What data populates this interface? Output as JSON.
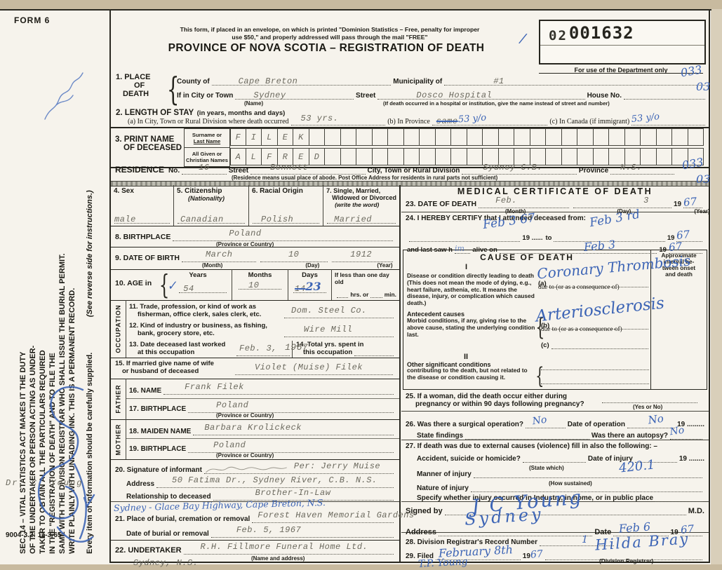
{
  "glyphs": {
    "brace": "{",
    "check": "✓",
    "slash": "/"
  },
  "meta": {
    "form_no": "FORM 6",
    "print_code": "9004-3.2: 11-3-65",
    "margin": {
      "l1": "SEC. 14 – VITAL STATISTICS ACT MAKES IT THE DUTY",
      "l2": "OF THE UNDERTAKER OR PERSON ACTING AS UNDER-",
      "l3": "TAKER TO OBTAIN ALL THE PARTICULARS REQUIRED",
      "l4": "IN THE \"REGISTRATION OF DEATH\" AND TO FILE THE",
      "l5": "SAME WITH THE DIVISION REGISTRAR WHO SHALL ISSUE THE BURIAL PERMIT.",
      "l6": "WRITE PLAINLY WITH UNFADING INK. THIS IS A PERMANENT RECORD.",
      "l7": "Every item of information should be carefully supplied.",
      "l8": "(See reverse side for instructions.)",
      "doctor_note": "Dr. C. Young"
    }
  },
  "header": {
    "envelope1": "This form, if placed in an envelope, on which is printed \"Dominion Statistics – Free, penalty for improper",
    "envelope2": "use $50,\" and properly addressed will pass through the mail \"FREE\"",
    "title": "PROVINCE OF NOVA SCOTIA – REGISTRATION OF DEATH",
    "stamp_prefix": "02",
    "stamp_number": "001632",
    "dept_label": "For use of the Department only",
    "code_top_1": "033",
    "code_top_2": "03",
    "code_res_1": "033",
    "code_res_2": "03"
  },
  "s1": {
    "title1": "1. PLACE",
    "title2": "OF",
    "title3": "DEATH",
    "county_label": "County of",
    "county": "Cape Breton",
    "municipality_label": "Municipality of",
    "municipality": "#1",
    "city_label": "If in City or Town",
    "city": "Sydney",
    "name_caption": "(Name)",
    "street_label": "Street",
    "street": "Dosco Hospital",
    "street_caption": "(If death occurred in a hospital or institution, give the name instead of street and number)",
    "house_label": "House No."
  },
  "s2": {
    "title": "2. LENGTH OF STAY",
    "subtitle": "(in years, months and days)",
    "a_label": "(a) In City, Town or Rural Division where death occurred",
    "a": "53 yrs.",
    "b_label": "(b) In Province",
    "b_struck": "same",
    "b_hw": "53 y/o",
    "c_label": "(c) In Canada (if immigrant)",
    "c_hw": "53 y/o"
  },
  "s3": {
    "title1": "3. PRINT NAME",
    "title2": "OF DECEASED",
    "surname_label1": "Surname or",
    "surname_label2": "Last Name",
    "given_label1": "All Given or",
    "given_label2": "Christian Names",
    "surname": "FILEK",
    "given": "ALFRED"
  },
  "residence": {
    "title": "RESIDENCE",
    "no_label": "No.",
    "no": "16",
    "street_label": "Street",
    "street": "Bennett",
    "city_label": "City, Town or Rural Division",
    "city": "Sydney C.B.",
    "province_label": "Province",
    "province": "N.S.",
    "caption": "(Residence means usual place of abode. Post Office Address for residents in rural parts not sufficient)"
  },
  "s4": {
    "label": "4. Sex",
    "value": "male"
  },
  "s5": {
    "label": "5. Citizenship",
    "sub": "(Nationality)",
    "value": "Canadian"
  },
  "s6": {
    "label": "6. Racial Origin",
    "value": "Polish"
  },
  "s7": {
    "label1": "7. Single, Married,",
    "label2": "Widowed or Divorced",
    "label3": "(write the word)",
    "value": "Married"
  },
  "s8": {
    "label": "8. BIRTHPLACE",
    "value": "Poland",
    "caption": "(Province or Country)"
  },
  "s9": {
    "label": "9. DATE OF BIRTH",
    "month": "March",
    "month_cap": "(Month)",
    "day": "10",
    "day_cap": "(Day)",
    "year": "1912",
    "year_cap": "(Year)"
  },
  "s10": {
    "label": "10. AGE in",
    "years_label": "Years",
    "years": "54",
    "months_label": "Months",
    "months": "10",
    "days_label": "Days",
    "days_struck": "14",
    "days_hw": "23",
    "less1": "If less than one day old",
    "less2": "hrs. or",
    "less3": "min."
  },
  "occupation_label": "OCCUPATION",
  "s11": {
    "label1": "11. Trade, profession, or kind of work as",
    "label2": "fisherman, office clerk, sales clerk, etc.",
    "value": "Dom. Steel Co."
  },
  "s12": {
    "label1": "12. Kind of industry or business, as fishing,",
    "label2": "bank, grocery store, etc.",
    "value": "Wire Mill"
  },
  "s13": {
    "label1": "13. Date deceased last worked",
    "label2": "at this occupation",
    "value": "Feb. 3,",
    "year": "1967"
  },
  "s14": {
    "label1": "14. Total yrs. spent in",
    "label2": "this occupation"
  },
  "s15": {
    "label1": "15. If married give name of wife",
    "label2": "or husband of deceased",
    "value": "Violet (Muise) Filek"
  },
  "father_label": "FATHER",
  "s16": {
    "label": "16. NAME",
    "value": "Frank Filek"
  },
  "s17": {
    "label": "17. BIRTHPLACE",
    "value": "Poland",
    "caption": "(Province or Country)"
  },
  "mother_label": "MOTHER",
  "s18": {
    "label": "18. MAIDEN NAME",
    "value": "Barbara Krolickeck"
  },
  "s19": {
    "label": "19. BIRTHPLACE",
    "value": "Poland",
    "caption": "(Province or Country)"
  },
  "s20": {
    "label": "20. Signature of informant",
    "per": "Per: Jerry Muise",
    "address_label": "Address",
    "address": "50 Fatima Dr., Sydney River, C.B. N.S.",
    "rel_label": "Relationship to deceased",
    "relationship": "Brother-In-Law"
  },
  "burial_note_hw": "Sydney - Glace Bay Highway, Cape Breton, N.S.",
  "s21": {
    "label": "21. Place of burial, cremation or removal",
    "place": "Forest Haven Memorial Gardens",
    "date_label": "Date of burial or removal",
    "date": "Feb. 5, 1967"
  },
  "s22": {
    "label": "22. UNDERTAKER",
    "value": "R.H. Fillmore Funeral Home Ltd.",
    "caption": "(Name and address)",
    "city": "Sydney, N.S."
  },
  "medical": {
    "title": "MEDICAL CERTIFICATE OF DEATH",
    "s23": {
      "label": "23. DATE OF DEATH",
      "month": "Feb.",
      "month_cap": "(Month)",
      "day": "3",
      "day_cap": "(Day)",
      "y19": "19",
      "year_hw": "67",
      "year_cap": "(Year)"
    },
    "s24": {
      "label": "24. I HEREBY CERTIFY that I attended deceased from:",
      "from_hw": "Feb 3  67",
      "y19a": "19 ......",
      "to_label": "to",
      "to_hw": "Feb 3 rd",
      "y19b": "19",
      "to_year_hw": "67",
      "saw_label1": "and last saw h",
      "him_hw": "im",
      "saw_label2": "alive on",
      "saw_hw": "Feb 3",
      "y19c": "19",
      "saw_year_hw": "67"
    },
    "cause": {
      "title": "CAUSE OF DEATH",
      "interval_cap1": "Approximate",
      "interval_cap2": "interval be-",
      "interval_cap3": "tween onset",
      "interval_cap4": "and death",
      "part1": "I",
      "desc1": "Disease or condition directly leading to death (This does not mean the mode of dying, e.g., heart failure, asthenia, etc. It means the disease, injury, or complication which caused death.)",
      "a_label": "(a)",
      "a_hw": "Coronary Thrombosis",
      "due1": "due to (or as a consequence of)",
      "antecedent_title": "Antecedent causes",
      "antecedent_desc": "Morbid conditions, if any, giving rise to the above cause, stating the underlying condition last.",
      "b_label": "(b)",
      "b_hw": "Arteriosclerosis",
      "due2": "due to (or as a consequence of)",
      "c_label": "(c)",
      "part2": "II",
      "other_title": "Other significant conditions",
      "other_desc": "contributing to the death, but not related to the disease or condition causing it."
    },
    "s25": {
      "label1": "25. If a woman, did the death occur either during",
      "label2": "pregnancy or within 90 days following pregnancy?",
      "caption": "(Yes or No)"
    },
    "s26": {
      "label": "26. Was there a surgical operation?",
      "op_hw": "No",
      "date_label": "Date of operation",
      "date_hw": "No",
      "y19": "19 .........",
      "findings_label": "State findings",
      "autopsy_label": "Was there an autopsy?",
      "autopsy_hw": "No"
    },
    "s27": {
      "label": "27. If death was due to external causes (violence) fill in also the following: –",
      "acc_label": "Accident, suicide or homicide?",
      "state_cap": "(State which)",
      "injury_date_label": "Date of injury",
      "y19": "19 ........",
      "manner_label": "Manner of injury",
      "manner_cap": "(How sustained)",
      "manner_hw": "420.1",
      "nature_label": "Nature of injury",
      "specify_label": "Specify whether injury occurred in Industry, in home, or in public place"
    },
    "signed": {
      "label": "Signed by",
      "sig_hw": "J C Young",
      "md": "M.D.",
      "address_label": "Address",
      "address_hw": "Sydney",
      "date_label": "Date",
      "date_hw": "Feb 6",
      "y19": "19",
      "year_hw": "67"
    },
    "s28": {
      "label": "28. Division Registrar's Record Number",
      "record_hw": "1"
    },
    "s29": {
      "label": "29. Filed",
      "filed_hw": "February 8th",
      "y19": "19",
      "year_hw": "67",
      "registrar_hw": "Hilda Bray",
      "caption": "(Division Registrar)",
      "extra_hw": "T.P. Young"
    }
  }
}
